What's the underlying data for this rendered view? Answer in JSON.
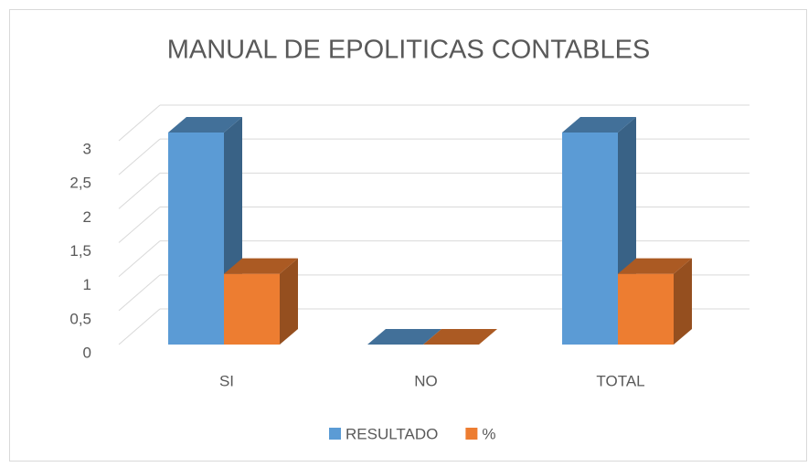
{
  "chart_data": {
    "type": "bar3d",
    "title": "MANUAL DE EPOLITICAS CONTABLES",
    "categories": [
      "SI",
      "NO",
      "TOTAL"
    ],
    "series": [
      {
        "name": "RESULTADO",
        "color": "#5b9bd5",
        "values": [
          3,
          0,
          3
        ]
      },
      {
        "name": "%",
        "color": "#ed7d31",
        "values": [
          1,
          0,
          1
        ]
      }
    ],
    "ylim": [
      0,
      3
    ],
    "yticks": [
      0,
      {
        "value": 0.5,
        "label": "0,5"
      },
      1,
      {
        "value": 1.5,
        "label": "1,5"
      },
      2,
      {
        "value": 2.5,
        "label": "2,5"
      },
      3
    ],
    "grid": true,
    "legend": "bottom"
  }
}
